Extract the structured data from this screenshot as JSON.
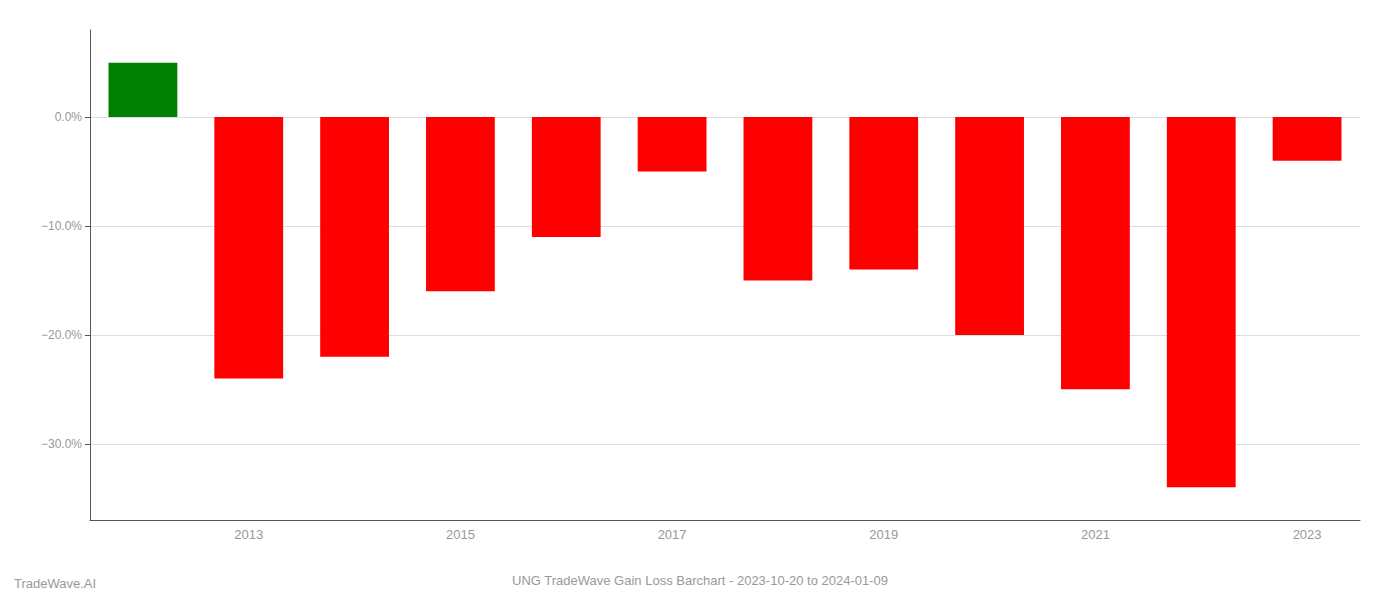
{
  "chart_data": {
    "type": "bar",
    "title": "UNG TradeWave Gain Loss Barchart - 2023-10-20 to 2024-01-09",
    "annotations": [
      "TradeWave.AI"
    ],
    "categories": [
      null,
      "2013",
      null,
      "2015",
      null,
      "2017",
      null,
      "2019",
      null,
      "2021",
      null,
      "2023"
    ],
    "values": [
      5.0,
      -24.0,
      -22.0,
      -16.0,
      -11.0,
      -5.0,
      -15.0,
      -14.0,
      -20.0,
      -25.0,
      -34.0,
      -4.0
    ],
    "colors": [
      "#008000",
      "#ff0000",
      "#ff0000",
      "#ff0000",
      "#ff0000",
      "#ff0000",
      "#ff0000",
      "#ff0000",
      "#ff0000",
      "#ff0000",
      "#ff0000",
      "#ff0000"
    ],
    "ylim": [
      -37,
      8
    ],
    "yticks": [
      {
        "value": 0.0,
        "label": "0.0%"
      },
      {
        "value": -10.0,
        "label": "−10.0%"
      },
      {
        "value": -20.0,
        "label": "−20.0%"
      },
      {
        "value": -30.0,
        "label": "−30.0%"
      }
    ],
    "grid": true
  }
}
